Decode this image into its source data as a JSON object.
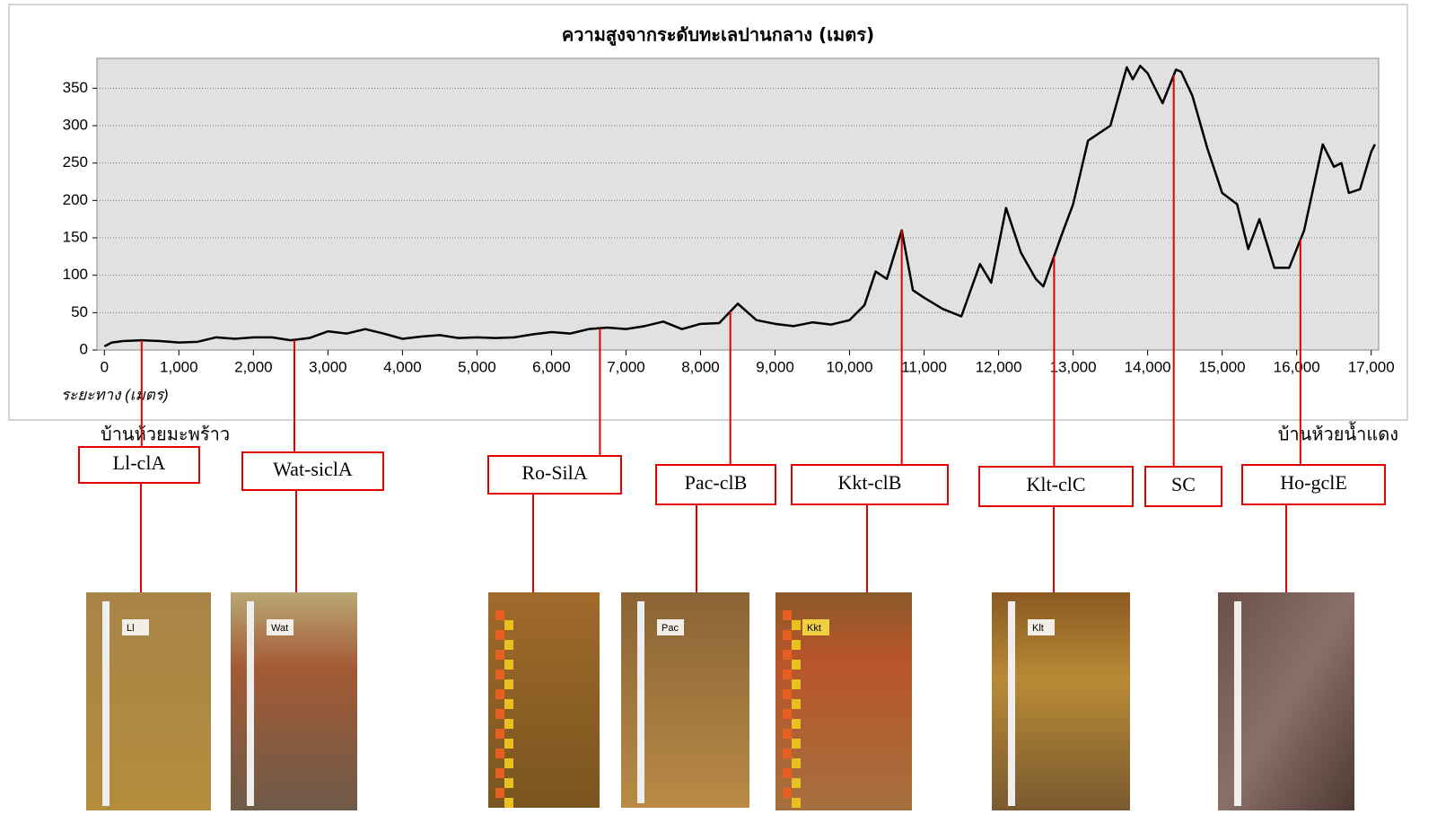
{
  "chart_data": {
    "type": "line",
    "title": "ความสูงจากระดับทะเลปานกลาง (เมตร)",
    "x_label": "ระยะทาง (เมตร)",
    "start_label": "บ้านห้วยมะพร้าว",
    "end_label": "บ้านห้วยน้ำแดง",
    "xlim": [
      -100,
      17100
    ],
    "ylim": [
      0,
      390
    ],
    "grid": true,
    "color": "#000000",
    "annotation_color": "#e00000",
    "xticks": [
      0,
      {
        "value": 1000,
        "label": "1,000"
      },
      {
        "value": 2000,
        "label": "2,000"
      },
      {
        "value": 3000,
        "label": "3,000"
      },
      {
        "value": 4000,
        "label": "4,000"
      },
      {
        "value": 5000,
        "label": "5,000"
      },
      {
        "value": 6000,
        "label": "6,000"
      },
      {
        "value": 7000,
        "label": "7,000"
      },
      {
        "value": 8000,
        "label": "8,000"
      },
      {
        "value": 9000,
        "label": "9,000"
      },
      {
        "value": 10000,
        "label": "10,000"
      },
      {
        "value": 11000,
        "label": "11,000"
      },
      {
        "value": 12000,
        "label": "12,000"
      },
      {
        "value": 13000,
        "label": "13,000"
      },
      {
        "value": 14000,
        "label": "14,000"
      },
      {
        "value": 15000,
        "label": "15,000"
      },
      {
        "value": 16000,
        "label": "16,000"
      },
      {
        "value": 17000,
        "label": "17,000"
      }
    ],
    "yticks": [
      0,
      50,
      100,
      150,
      200,
      250,
      300,
      350
    ],
    "x": [
      0,
      100,
      250,
      500,
      750,
      1000,
      1250,
      1500,
      1750,
      2000,
      2250,
      2500,
      2750,
      3000,
      3250,
      3500,
      3750,
      4000,
      4250,
      4500,
      4750,
      5000,
      5250,
      5500,
      5750,
      6000,
      6250,
      6500,
      6750,
      7000,
      7250,
      7500,
      7750,
      8000,
      8250,
      8500,
      8750,
      9000,
      9250,
      9500,
      9750,
      10000,
      10200,
      10350,
      10500,
      10700,
      10850,
      11000,
      11250,
      11500,
      11750,
      11900,
      12100,
      12300,
      12500,
      12600,
      12850,
      13000,
      13200,
      13500,
      13720,
      13800,
      13900,
      14000,
      14200,
      14380,
      14450,
      14600,
      14800,
      15000,
      15200,
      15350,
      15500,
      15700,
      15900,
      16100,
      16350,
      16500,
      16600,
      16700,
      16850,
      17000,
      17050
    ],
    "values": [
      5,
      10,
      12,
      13,
      12,
      10,
      11,
      17,
      15,
      17,
      17,
      13,
      16,
      25,
      22,
      28,
      22,
      15,
      18,
      20,
      16,
      17,
      16,
      17,
      21,
      24,
      22,
      28,
      30,
      28,
      32,
      38,
      28,
      35,
      36,
      62,
      40,
      35,
      32,
      37,
      34,
      40,
      60,
      105,
      95,
      160,
      80,
      70,
      55,
      45,
      115,
      90,
      190,
      130,
      95,
      85,
      155,
      195,
      280,
      300,
      378,
      362,
      380,
      370,
      330,
      375,
      372,
      340,
      270,
      210,
      195,
      135,
      175,
      110,
      110,
      160,
      275,
      245,
      250,
      210,
      215,
      265,
      275
    ],
    "annotations": [
      {
        "label": "Ll-clA",
        "x": 500,
        "photo_label": "Ll"
      },
      {
        "label": "Wat-siclA",
        "x": 2550,
        "photo_label": "Wat"
      },
      {
        "label": "Ro-SilA",
        "x": 6650
      },
      {
        "label": "Pac-clB",
        "x": 8400,
        "photo_label": "Pac"
      },
      {
        "label": "Kkt-clB",
        "x": 10700,
        "photo_label": "Kkt"
      },
      {
        "label": "Klt-clC",
        "x": 12745,
        "photo_label": "Klt"
      },
      {
        "label": "SC",
        "x": 14350
      },
      {
        "label": "Ho-gclE",
        "x": 16050
      }
    ]
  }
}
